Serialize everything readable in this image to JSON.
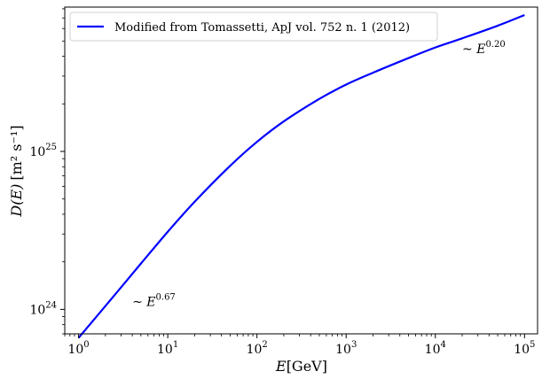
{
  "chart_data": {
    "type": "line",
    "x_scale": "log",
    "y_scale": "log",
    "xlim": [
      0.7,
      140000
    ],
    "ylim": [
      7e+23,
      8.2e+25
    ],
    "grid": false,
    "legend_position": "top-left",
    "xlabel": {
      "main": "E",
      "unit": "[GeV]"
    },
    "ylabel": {
      "main": "D(E)",
      "unit": "[m² s⁻¹]"
    },
    "x_ticks": [
      {
        "value": 1,
        "base": "10",
        "exp": "0"
      },
      {
        "value": 10,
        "base": "10",
        "exp": "1"
      },
      {
        "value": 100,
        "base": "10",
        "exp": "2"
      },
      {
        "value": 1000,
        "base": "10",
        "exp": "3"
      },
      {
        "value": 10000,
        "base": "10",
        "exp": "4"
      },
      {
        "value": 100000,
        "base": "10",
        "exp": "5"
      }
    ],
    "y_ticks": [
      {
        "value": 1e+24,
        "base": "10",
        "exp": "24"
      },
      {
        "value": 1e+25,
        "base": "10",
        "exp": "25"
      }
    ],
    "series": [
      {
        "name": "Modified from Tomassetti, ApJ vol. 752 n. 1 (2012)",
        "color": "#0000ff",
        "x": [
          1,
          2,
          5,
          10,
          20,
          50,
          100,
          200,
          500,
          1000,
          2000,
          5000,
          10000,
          20000,
          50000,
          100000
        ],
        "y": [
          6.6e+23,
          1.05e+24,
          1.95e+24,
          3.1e+24,
          4.8e+24,
          8.1e+24,
          1.15e+25,
          1.55e+25,
          2.15e+25,
          2.65e+25,
          3.15e+25,
          3.9e+25,
          4.55e+25,
          5.2e+25,
          6.25e+25,
          7.3e+25
        ]
      }
    ],
    "annotations": [
      {
        "prefix": "~ E",
        "exp": "0.67",
        "x": 4,
        "y": 1.05e+24
      },
      {
        "prefix": "~ E",
        "exp": "0.20",
        "x": 20000,
        "y": 4.2e+25
      }
    ]
  }
}
